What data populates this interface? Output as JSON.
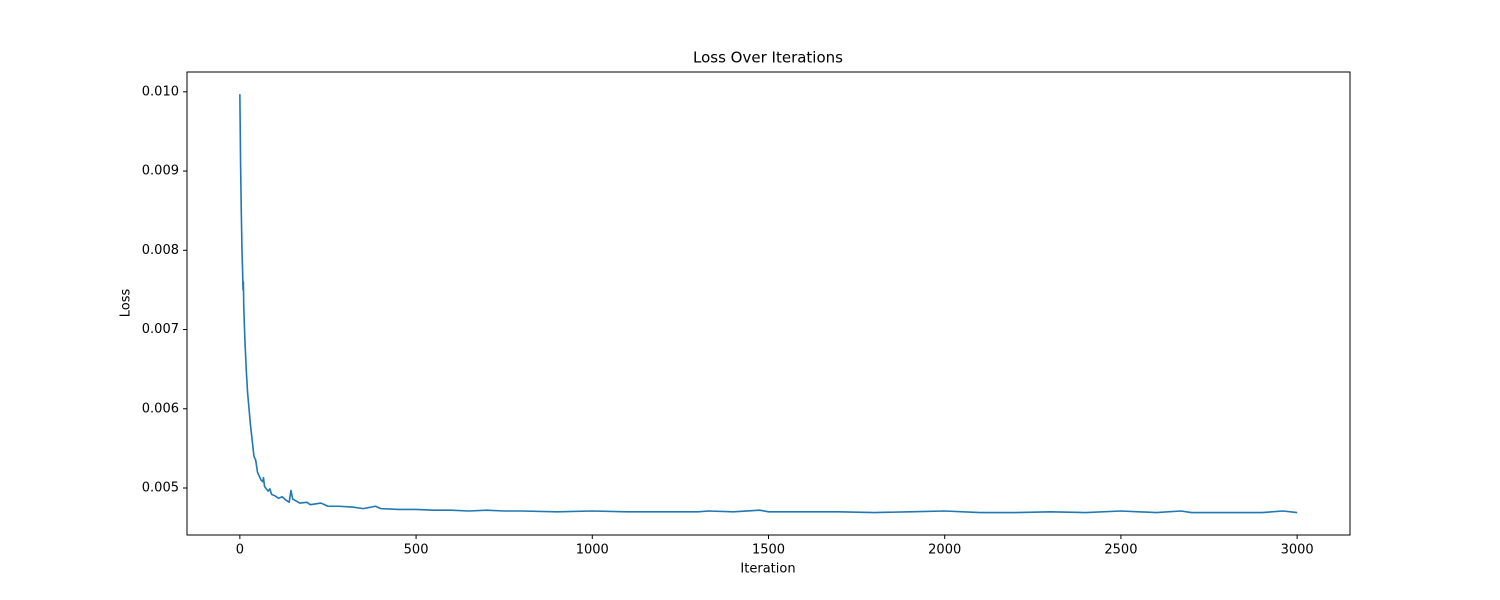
{
  "chart_data": {
    "type": "line",
    "title": "Loss Over Iterations",
    "x_label": "Iteration",
    "y_label": "Loss",
    "series": [
      {
        "name": "Loss",
        "color": "#1f77b4",
        "x": [
          0,
          2,
          4,
          6,
          8,
          9,
          10,
          11,
          14,
          18,
          22,
          26,
          30,
          35,
          40,
          45,
          50,
          55,
          60,
          65,
          67,
          70,
          80,
          85,
          90,
          100,
          110,
          120,
          130,
          140,
          145,
          150,
          170,
          190,
          200,
          230,
          250,
          280,
          320,
          350,
          385,
          400,
          450,
          500,
          550,
          600,
          650,
          700,
          750,
          800,
          900,
          1000,
          1100,
          1200,
          1300,
          1330,
          1400,
          1475,
          1500,
          1600,
          1700,
          1800,
          1900,
          2000,
          2100,
          2200,
          2300,
          2400,
          2500,
          2600,
          2670,
          2700,
          2800,
          2900,
          2960,
          3000
        ],
        "values": [
          0.00997,
          0.0091,
          0.0085,
          0.008,
          0.0077,
          0.0075,
          0.0076,
          0.0073,
          0.0069,
          0.0065,
          0.0062,
          0.006,
          0.0058,
          0.0056,
          0.0054,
          0.00535,
          0.0052,
          0.00515,
          0.0051,
          0.00508,
          0.00513,
          0.00502,
          0.00496,
          0.00499,
          0.00492,
          0.0049,
          0.00487,
          0.00489,
          0.00485,
          0.00482,
          0.00497,
          0.00486,
          0.00481,
          0.00482,
          0.00479,
          0.00481,
          0.00477,
          0.00477,
          0.00476,
          0.00474,
          0.00477,
          0.00474,
          0.00473,
          0.00473,
          0.00472,
          0.00472,
          0.00471,
          0.00472,
          0.00471,
          0.00471,
          0.0047,
          0.00471,
          0.0047,
          0.0047,
          0.0047,
          0.00471,
          0.0047,
          0.00472,
          0.0047,
          0.0047,
          0.0047,
          0.00469,
          0.0047,
          0.00471,
          0.00469,
          0.00469,
          0.0047,
          0.00469,
          0.00471,
          0.00469,
          0.00471,
          0.00469,
          0.00469,
          0.00469,
          0.00471,
          0.00469
        ]
      }
    ],
    "xlim": [
      -150,
      3150
    ],
    "xticks": [
      0,
      500,
      1000,
      1500,
      2000,
      2500,
      3000
    ],
    "ylim": [
      0.004407,
      0.01025
    ],
    "yticks": [
      0.005,
      0.006,
      0.007,
      0.008,
      0.009,
      {
        "value": 0.01,
        "label": "0.010"
      }
    ]
  }
}
